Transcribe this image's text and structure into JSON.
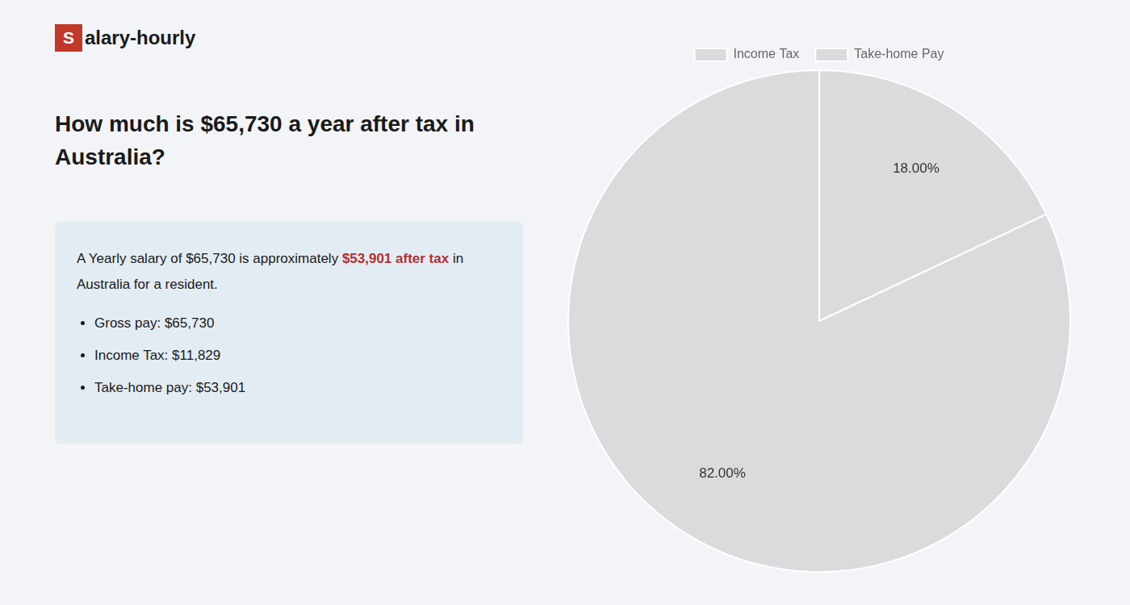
{
  "chart_data": {
    "type": "pie",
    "title": [
      "How much is $65,730 a year after tax in",
      "Australia?"
    ],
    "categories": [
      "Income Tax",
      "Take-home Pay"
    ],
    "values": [
      18,
      82
    ],
    "value_labels": [
      "18.00%",
      "82.00%"
    ],
    "data_labels": true,
    "legend": "top",
    "annotations": [
      [
        {
          "text": "S",
          "color": "#c0392b"
        },
        {
          "text": "alary-hourly"
        }
      ],
      [
        {
          "text": "A Yearly salary of $65,730 is approximately "
        },
        {
          "text": "$53,901 after tax",
          "color": "#b03030"
        },
        {
          "text": " in"
        }
      ],
      [
        {
          "text": "Australia for a resident."
        }
      ],
      [
        {
          "text": "Gross pay: $65,730"
        }
      ],
      [
        {
          "text": "Income Tax: $11,829"
        }
      ],
      [
        {
          "text": "Take-home pay: $53,901"
        }
      ]
    ]
  }
}
